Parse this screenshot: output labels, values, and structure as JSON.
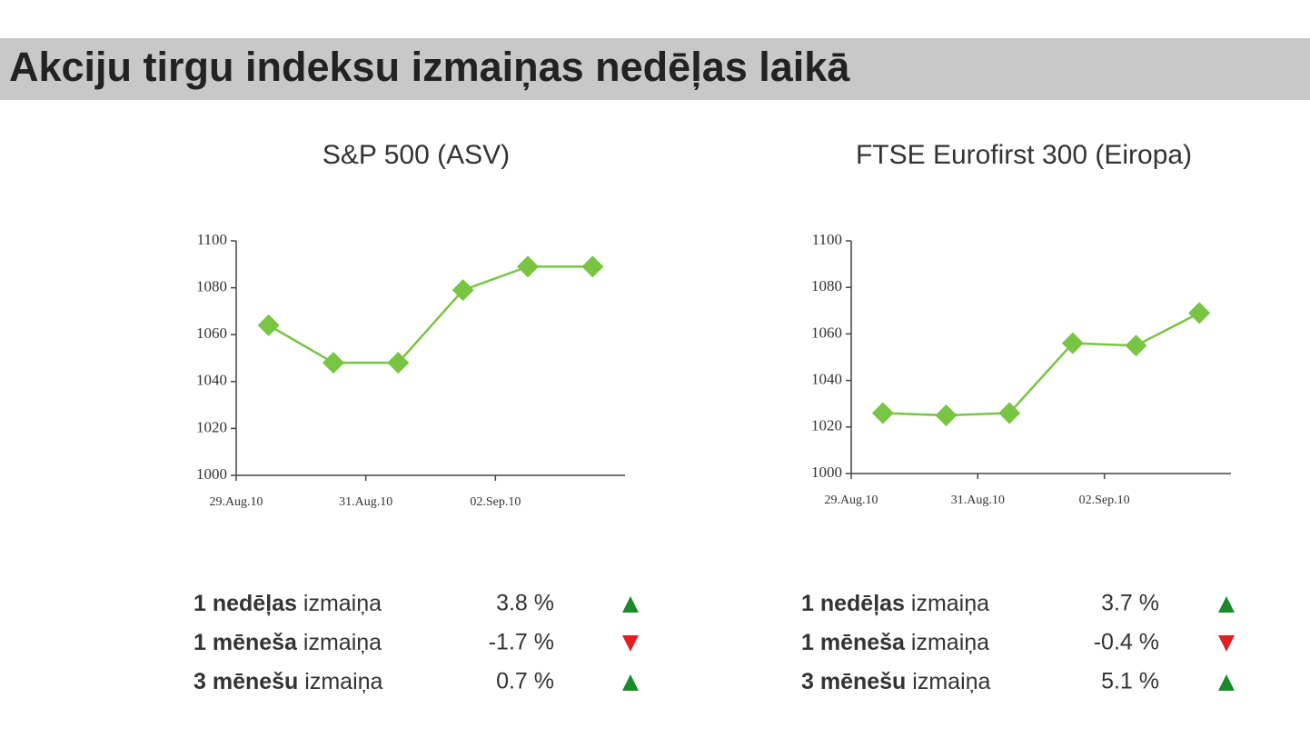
{
  "header": {
    "title": "Akciju tirgu indeksu izmaiņas nedēļas laikā"
  },
  "chart_data": [
    {
      "type": "line",
      "title": "S&P 500 (ASV)",
      "categories": [
        "29.Aug.10",
        null,
        "31.Aug.10",
        null,
        "02.Sep.10",
        null
      ],
      "values": [
        1064,
        1048,
        1048,
        1079,
        1089,
        1089
      ],
      "color": "#78c443",
      "ylim": [
        1000,
        1100
      ],
      "yticks": [
        1000,
        1020,
        1040,
        1060,
        1080,
        1100
      ]
    },
    {
      "type": "line",
      "title": "FTSE Eurofirst 300 (Eiropa)",
      "categories": [
        "29.Aug.10",
        null,
        "31.Aug.10",
        null,
        "02.Sep.10",
        null
      ],
      "values": [
        1026,
        1025,
        1026,
        1056,
        1055,
        1069
      ],
      "color": "#78c443",
      "ylim": [
        1000,
        1100
      ],
      "yticks": [
        1000,
        1020,
        1040,
        1060,
        1080,
        1100
      ]
    }
  ],
  "stats": [
    [
      {
        "bold": "1 nedēļas",
        "rest": " izmaiņa",
        "value": "3.8 %",
        "trend": "up"
      },
      {
        "bold": "1 mēneša",
        "rest": " izmaiņa",
        "value": "-1.7 %",
        "trend": "down"
      },
      {
        "bold": "3 mēnešu",
        "rest": " izmaiņa",
        "value": "0.7 %",
        "trend": "up"
      }
    ],
    [
      {
        "bold": "1 nedēļas",
        "rest": " izmaiņa",
        "value": "3.7 %",
        "trend": "up"
      },
      {
        "bold": "1 mēneša",
        "rest": " izmaiņa",
        "value": "-0.4 %",
        "trend": "down"
      },
      {
        "bold": "3 mēnešu",
        "rest": " izmaiņa",
        "value": "5.1 %",
        "trend": "up"
      }
    ]
  ]
}
